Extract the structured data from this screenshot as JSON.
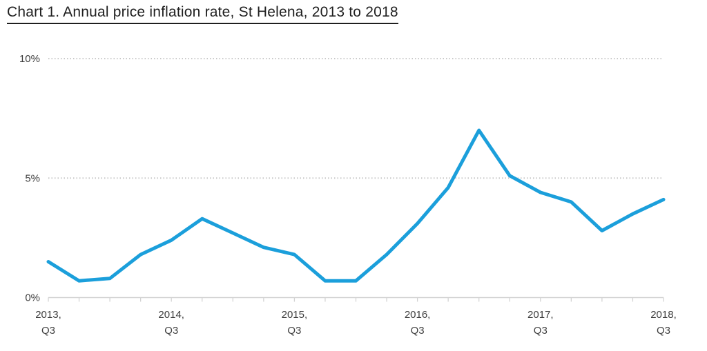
{
  "title": "Chart 1. Annual price inflation rate, St Helena, 2013 to 2018",
  "chart_data": {
    "type": "line",
    "title": "Chart 1. Annual price inflation rate, St Helena, 2013 to 2018",
    "x": [
      "2013 Q3",
      "2013 Q4",
      "2014 Q1",
      "2014 Q2",
      "2014 Q3",
      "2014 Q4",
      "2015 Q1",
      "2015 Q2",
      "2015 Q3",
      "2015 Q4",
      "2016 Q1",
      "2016 Q2",
      "2016 Q3",
      "2016 Q4",
      "2017 Q1",
      "2017 Q2",
      "2017 Q3",
      "2017 Q4",
      "2018 Q1",
      "2018 Q2",
      "2018 Q3"
    ],
    "values": [
      1.5,
      0.7,
      0.8,
      1.8,
      2.4,
      3.3,
      2.7,
      2.1,
      1.8,
      0.7,
      0.7,
      1.8,
      3.1,
      4.6,
      7.0,
      5.1,
      4.4,
      4.0,
      2.8,
      3.5,
      4.1
    ],
    "unit": "%",
    "ylim": [
      0,
      10
    ],
    "y_ticks": [
      {
        "value": 0,
        "label": "0%"
      },
      {
        "value": 5,
        "label": "5%"
      },
      {
        "value": 10,
        "label": "10%"
      }
    ],
    "x_ticks": [
      {
        "index": 0,
        "line1": "2013,",
        "line2": "Q3"
      },
      {
        "index": 4,
        "line1": "2014,",
        "line2": "Q3"
      },
      {
        "index": 8,
        "line1": "2015,",
        "line2": "Q3"
      },
      {
        "index": 12,
        "line1": "2016,",
        "line2": "Q3"
      },
      {
        "index": 16,
        "line1": "2017,",
        "line2": "Q3"
      },
      {
        "index": 20,
        "line1": "2018,",
        "line2": "Q3"
      }
    ],
    "grid": "horizontal dotted at 5% and 10%",
    "legend": "none",
    "colors": {
      "line": "#1b9fdb",
      "grid": "#c8c8c8",
      "axis": "#d2d2d2",
      "label": "#3d3d3d",
      "title": "#1f1f1f"
    }
  }
}
